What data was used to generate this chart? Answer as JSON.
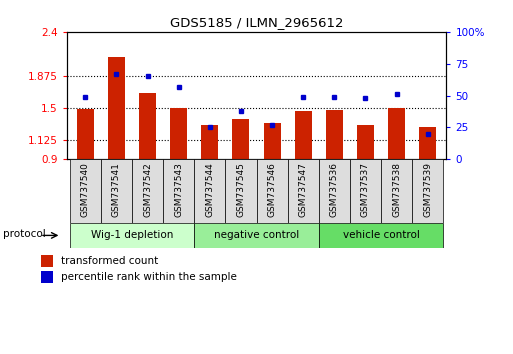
{
  "title": "GDS5185 / ILMN_2965612",
  "samples": [
    "GSM737540",
    "GSM737541",
    "GSM737542",
    "GSM737543",
    "GSM737544",
    "GSM737545",
    "GSM737546",
    "GSM737547",
    "GSM737536",
    "GSM737537",
    "GSM737538",
    "GSM737539"
  ],
  "transformed_counts": [
    1.49,
    2.1,
    1.68,
    1.5,
    1.3,
    1.38,
    1.33,
    1.47,
    1.48,
    1.3,
    1.5,
    1.28
  ],
  "percentile_ranks": [
    49,
    67,
    65,
    57,
    25,
    38,
    27,
    49,
    49,
    48,
    51,
    20
  ],
  "groups": [
    {
      "label": "Wig-1 depletion",
      "start": 0,
      "end": 4,
      "color": "#ccffcc"
    },
    {
      "label": "negative control",
      "start": 4,
      "end": 8,
      "color": "#99ee99"
    },
    {
      "label": "vehicle control",
      "start": 8,
      "end": 12,
      "color": "#66dd66"
    }
  ],
  "ylim_left": [
    0.9,
    2.4
  ],
  "ylim_right": [
    0,
    100
  ],
  "yticks_left": [
    0.9,
    1.125,
    1.5,
    1.875,
    2.4
  ],
  "ytick_labels_left": [
    "0.9",
    "1.125",
    "1.5",
    "1.875",
    "2.4"
  ],
  "yticks_right": [
    0,
    25,
    50,
    75,
    100
  ],
  "ytick_labels_right": [
    "0",
    "25",
    "50",
    "75",
    "100%"
  ],
  "bar_color": "#cc2200",
  "dot_color": "#0000cc",
  "protocol_label": "protocol",
  "grid_dotted_ticks": [
    1.125,
    1.5,
    1.875
  ],
  "legend_items": [
    {
      "label": "transformed count",
      "color": "#cc2200"
    },
    {
      "label": "percentile rank within the sample",
      "color": "#0000cc"
    }
  ],
  "group_colors": [
    "#ccffcc",
    "#99ee99",
    "#66dd66"
  ]
}
